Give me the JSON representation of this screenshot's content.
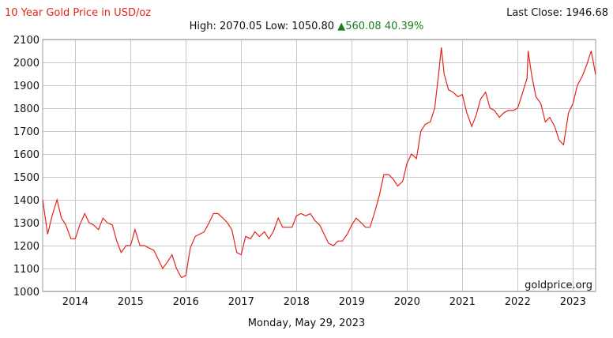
{
  "header": {
    "title": "10 Year Gold Price in USD/oz",
    "last_close": "Last Close: 1946.68"
  },
  "stats": {
    "high_label": "High:",
    "high_value": "2070.05",
    "low_label": "Low:",
    "low_value": "1050.80",
    "change_value": "560.08",
    "change_percent": "40.39%",
    "change_direction": "up"
  },
  "watermark": "goldprice.org",
  "footer": {
    "date": "Monday, May 29, 2023"
  },
  "colors": {
    "line": "#e4231b",
    "grid": "#c8c8c8",
    "title": "#e4231b",
    "change": "#1a7f1a"
  },
  "chart_data": {
    "type": "line",
    "title": "10 Year Gold Price in USD/oz",
    "xlabel": "",
    "ylabel": "",
    "x_range": [
      2013.41,
      2023.41
    ],
    "ylim": [
      1000,
      2100
    ],
    "y_ticks": [
      1000,
      1100,
      1200,
      1300,
      1400,
      1500,
      1600,
      1700,
      1800,
      1900,
      2000,
      2100
    ],
    "x_ticks": [
      2014,
      2015,
      2016,
      2017,
      2018,
      2019,
      2020,
      2021,
      2022,
      2023
    ],
    "grid": true,
    "legend": "none",
    "series": [
      {
        "x": [
          2013.41,
          2013.5,
          2013.58,
          2013.67,
          2013.75,
          2013.83,
          2013.92,
          2014.0,
          2014.08,
          2014.17,
          2014.25,
          2014.33,
          2014.42,
          2014.5,
          2014.58,
          2014.67,
          2014.75,
          2014.83,
          2014.92,
          2015.0,
          2015.08,
          2015.17,
          2015.25,
          2015.33,
          2015.42,
          2015.5,
          2015.58,
          2015.67,
          2015.75,
          2015.83,
          2015.92,
          2016.0,
          2016.08,
          2016.17,
          2016.25,
          2016.33,
          2016.42,
          2016.5,
          2016.58,
          2016.67,
          2016.75,
          2016.83,
          2016.92,
          2017.0,
          2017.08,
          2017.17,
          2017.25,
          2017.33,
          2017.42,
          2017.5,
          2017.58,
          2017.67,
          2017.75,
          2017.83,
          2017.92,
          2018.0,
          2018.08,
          2018.17,
          2018.25,
          2018.33,
          2018.42,
          2018.5,
          2018.58,
          2018.67,
          2018.75,
          2018.83,
          2018.92,
          2019.0,
          2019.08,
          2019.17,
          2019.25,
          2019.33,
          2019.42,
          2019.5,
          2019.58,
          2019.67,
          2019.75,
          2019.83,
          2019.92,
          2020.0,
          2020.08,
          2020.17,
          2020.25,
          2020.33,
          2020.42,
          2020.5,
          2020.58,
          2020.62,
          2020.67,
          2020.75,
          2020.83,
          2020.92,
          2021.0,
          2021.08,
          2021.17,
          2021.25,
          2021.33,
          2021.42,
          2021.5,
          2021.58,
          2021.67,
          2021.75,
          2021.83,
          2021.92,
          2022.0,
          2022.08,
          2022.17,
          2022.19,
          2022.25,
          2022.33,
          2022.42,
          2022.5,
          2022.58,
          2022.67,
          2022.75,
          2022.83,
          2022.92,
          2023.0,
          2023.08,
          2023.17,
          2023.25,
          2023.33,
          2023.41
        ],
        "y": [
          1400,
          1250,
          1330,
          1400,
          1320,
          1290,
          1230,
          1230,
          1290,
          1340,
          1300,
          1290,
          1270,
          1320,
          1300,
          1290,
          1220,
          1170,
          1200,
          1200,
          1270,
          1200,
          1200,
          1190,
          1180,
          1140,
          1100,
          1130,
          1160,
          1100,
          1060,
          1070,
          1190,
          1240,
          1250,
          1260,
          1300,
          1340,
          1340,
          1320,
          1300,
          1270,
          1170,
          1160,
          1240,
          1230,
          1260,
          1240,
          1260,
          1230,
          1260,
          1320,
          1280,
          1280,
          1280,
          1330,
          1340,
          1330,
          1340,
          1310,
          1290,
          1250,
          1210,
          1200,
          1220,
          1220,
          1250,
          1290,
          1320,
          1300,
          1280,
          1280,
          1350,
          1420,
          1510,
          1510,
          1490,
          1460,
          1480,
          1560,
          1600,
          1580,
          1700,
          1730,
          1740,
          1800,
          1970,
          2065,
          1950,
          1880,
          1870,
          1850,
          1860,
          1780,
          1720,
          1770,
          1840,
          1870,
          1800,
          1790,
          1760,
          1780,
          1790,
          1790,
          1800,
          1860,
          1930,
          2050,
          1950,
          1850,
          1820,
          1740,
          1760,
          1720,
          1660,
          1640,
          1780,
          1820,
          1900,
          1940,
          1990,
          2050,
          1946.68
        ]
      }
    ]
  }
}
